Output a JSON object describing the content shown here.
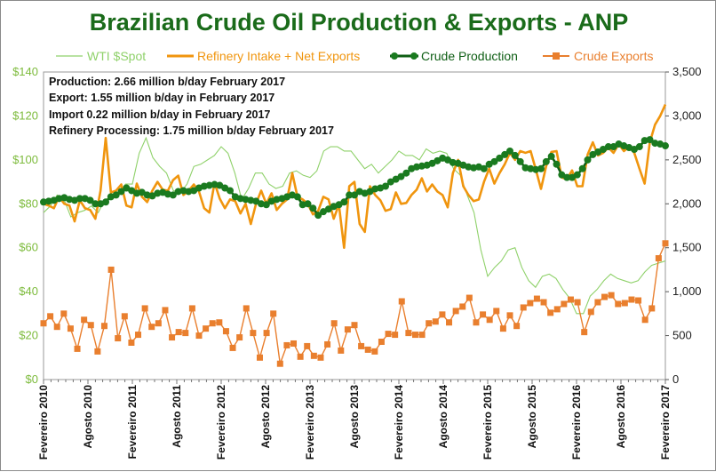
{
  "chart_data": {
    "type": "line",
    "title": "Brazilian Crude Oil Production & Exports - ANP",
    "annotations": [
      "Production: 2.66 million b/day February 2017",
      "Export: 1.55  million b/day in February 2017",
      "Import 0.22  million b/day in February 2017",
      "Refinery Processing: 1.75 million b/day February 2017"
    ],
    "legend": [
      "WTI $Spot",
      "Refinery Intake + Net Exports",
      "Crude Production",
      "Crude Exports"
    ],
    "legend_position": "top",
    "x_tick_labels": [
      "Fevereiro 2010",
      "Agosto 2010",
      "Fevereiro 2011",
      "Agosto 2011",
      "Fevereiro 2012",
      "Agosto 2012",
      "Fevereiro 2013",
      "Agosto 2013",
      "Fevereiro 2014",
      "Agosto 2014",
      "Fevereiro 2015",
      "Agosto 2015",
      "Fevereiro 2016",
      "Agosto 2016",
      "Fevereiro 2017"
    ],
    "y_left": {
      "ticks": [
        "$0",
        "$20",
        "$40",
        "$60",
        "$80",
        "$100",
        "$120",
        "$140"
      ],
      "range": [
        0,
        140
      ]
    },
    "y_right": {
      "ticks": [
        "0",
        "500",
        "1,000",
        "1,500",
        "2,000",
        "2,500",
        "3,000",
        "3,500"
      ],
      "range": [
        0,
        3500
      ]
    },
    "x_range": [
      "2010-02",
      "2017-02"
    ],
    "colors": {
      "wti": "#8fd16a",
      "refinery": "#f0950e",
      "production": "#0e5e14",
      "production_marker": "#1a7a1f",
      "exports": "#e97f2e",
      "left_axis_text": "#7dbb3c",
      "title": "#1a6b1a"
    },
    "series": [
      {
        "name": "WTI $Spot",
        "axis": "left",
        "key": "wti",
        "values": [
          76,
          79,
          84,
          82,
          74,
          76,
          77,
          79,
          76,
          82,
          83,
          85,
          89,
          89,
          103,
          110,
          101,
          97,
          94,
          86,
          85,
          89,
          97,
          98,
          100,
          102,
          106,
          103,
          94,
          82,
          87,
          94,
          94,
          89,
          87,
          88,
          94,
          95,
          93,
          92,
          95,
          104,
          106,
          106,
          104,
          104,
          100,
          96,
          98,
          94,
          97,
          100,
          104,
          102,
          102,
          100,
          105,
          103,
          104,
          103,
          96,
          93,
          84,
          76,
          59,
          47,
          51,
          54,
          59,
          60,
          51,
          45,
          42,
          47,
          48,
          46,
          41,
          37,
          30,
          30,
          38,
          41,
          45,
          48,
          46,
          45,
          44,
          45,
          49,
          52,
          53,
          54
        ]
      },
      {
        "name": "Refinery Intake + Net Exports",
        "axis": "right",
        "key": "refinery",
        "values": [
          2000,
          1980,
          1950,
          2080,
          2000,
          1980,
          1800,
          2040,
          1950,
          1930,
          1830,
          2150,
          2750,
          2130,
          2150,
          2220,
          1980,
          1960,
          2230,
          2080,
          2020,
          2150,
          2250,
          2160,
          2150,
          2270,
          2320,
          2100,
          2150,
          2220,
          2140,
          1950,
          1900,
          2240,
          2060,
          1950,
          2050,
          2030,
          1890,
          2000,
          1770,
          2000,
          2150,
          2000,
          2120,
          1930,
          2000,
          2050,
          2350,
          2080,
          2050,
          2000,
          1880,
          1920,
          2080,
          2050,
          1830,
          1990,
          1500,
          2200,
          2250,
          1770,
          1680,
          2200,
          2100,
          2040,
          1920,
          1940,
          2130,
          2000,
          2010,
          2100,
          2160,
          2290,
          2140,
          2220,
          2140,
          2100,
          1960,
          2350,
          2500,
          2200,
          2100,
          2030,
          2050,
          2250,
          2400,
          2230,
          2350,
          2450,
          2580,
          2500,
          2600,
          2580,
          2600,
          2390,
          2170,
          2430,
          2590,
          2600,
          2300,
          2280,
          2380,
          2200,
          2200,
          2560,
          2700,
          2550,
          2580,
          2640,
          2580,
          2680,
          2600,
          2650,
          2580,
          2400,
          2230,
          2700,
          2900,
          3000,
          3130
        ]
      },
      {
        "name": "Crude Production",
        "axis": "right",
        "key": "production",
        "values": [
          2020,
          2030,
          2040,
          2060,
          2070,
          2050,
          2040,
          2060,
          2060,
          2040,
          2000,
          2000,
          2020,
          2080,
          2100,
          2140,
          2180,
          2150,
          2120,
          2130,
          2100,
          2090,
          2120,
          2130,
          2110,
          2100,
          2140,
          2150,
          2140,
          2150,
          2180,
          2200,
          2210,
          2220,
          2210,
          2180,
          2150,
          2080,
          2060,
          2050,
          2040,
          2030,
          2000,
          1990,
          2030,
          2050,
          2060,
          2080,
          2100,
          2080,
          1990,
          2000,
          1950,
          1870,
          1910,
          1940,
          1970,
          1990,
          2020,
          2100,
          2100,
          2140,
          2120,
          2140,
          2170,
          2180,
          2200,
          2250,
          2280,
          2310,
          2350,
          2400,
          2420,
          2430,
          2440,
          2460,
          2490,
          2520,
          2500,
          2470,
          2460,
          2440,
          2420,
          2410,
          2420,
          2400,
          2450,
          2480,
          2520,
          2560,
          2600,
          2550,
          2480,
          2410,
          2400,
          2390,
          2400,
          2480,
          2540,
          2450,
          2330,
          2300,
          2300,
          2330,
          2400,
          2500,
          2560,
          2590,
          2620,
          2650,
          2650,
          2680,
          2660,
          2640,
          2620,
          2650,
          2720,
          2730,
          2690,
          2680,
          2660
        ]
      },
      {
        "name": "Crude Exports",
        "axis": "right",
        "key": "exports",
        "values": [
          640,
          720,
          600,
          750,
          580,
          350,
          680,
          620,
          320,
          610,
          1250,
          470,
          720,
          420,
          510,
          810,
          600,
          640,
          790,
          480,
          540,
          530,
          810,
          500,
          580,
          640,
          650,
          550,
          360,
          480,
          810,
          530,
          250,
          530,
          750,
          180,
          390,
          410,
          260,
          380,
          270,
          250,
          400,
          640,
          330,
          570,
          620,
          380,
          340,
          320,
          430,
          520,
          510,
          890,
          530,
          510,
          510,
          640,
          660,
          740,
          650,
          780,
          830,
          930,
          650,
          740,
          680,
          780,
          580,
          730,
          610,
          820,
          870,
          920,
          880,
          760,
          800,
          860,
          910,
          880,
          540,
          770,
          880,
          940,
          960,
          860,
          870,
          910,
          900,
          680,
          810,
          1380,
          1550
        ]
      }
    ]
  }
}
